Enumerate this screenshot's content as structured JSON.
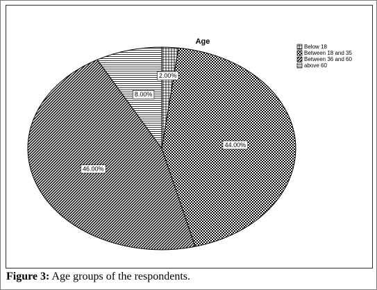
{
  "figure": {
    "caption_label": "Figure 3:",
    "caption_text": "Age groups of the respondents."
  },
  "chart_data": {
    "type": "pie",
    "title": "Age",
    "legend_position": "top-right",
    "slices": [
      {
        "label": "Below 18",
        "value": 2.0,
        "display": "2.00%",
        "pattern": "cross-hatch"
      },
      {
        "label": "Between 18 and 35",
        "value": 44.0,
        "display": "44.00%",
        "pattern": "checker"
      },
      {
        "label": "Between 36 and 60",
        "value": 46.0,
        "display": "46.00%",
        "pattern": "diagonal-dense"
      },
      {
        "label": "above 60",
        "value": 8.0,
        "display": "8.00%",
        "pattern": "horizontal-lines"
      }
    ]
  }
}
